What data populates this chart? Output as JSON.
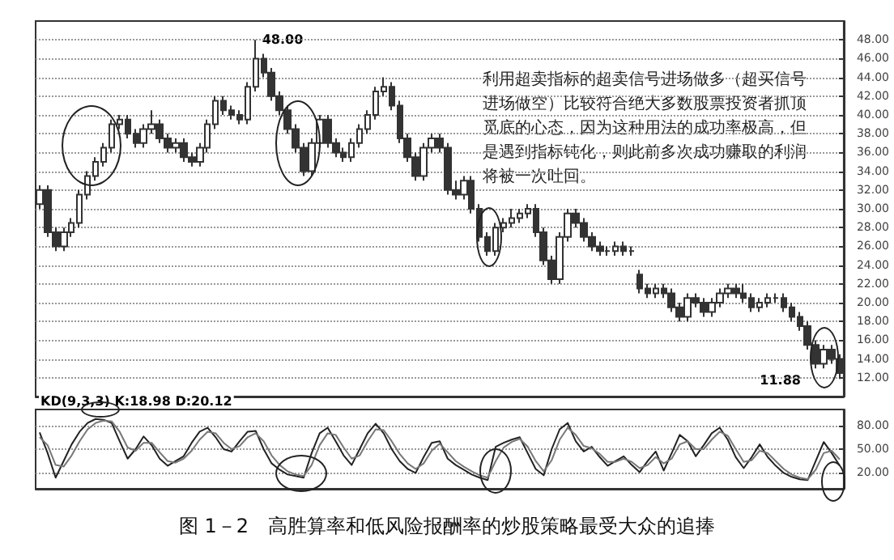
{
  "chart_data": [
    {
      "type": "candlestick",
      "title": "图 1－2　高胜算率和低风险报酬率的炒股策略最受大众的追捧",
      "annotations": [
        "48.00",
        "11.88",
        "利用超卖指标的超卖信号进场做多（超买信号进场做空）比较符合绝大多数股票投资者抓顶觅底的心态，因为这种用法的成功率极高，但是遇到指标钝化，则此前多次成功赚取的利润将被一次吐回。"
      ],
      "categories": [
        null,
        null,
        null,
        null,
        null,
        null,
        null,
        null,
        null,
        null,
        null,
        null,
        null,
        null,
        null,
        null,
        null,
        null,
        null,
        null,
        null,
        null,
        null,
        null,
        null,
        null,
        null,
        null,
        null,
        null,
        null,
        null,
        null,
        null,
        null,
        null,
        null,
        null,
        null,
        null,
        null,
        null,
        null,
        null,
        null,
        null,
        null,
        null,
        null,
        null,
        null,
        null,
        null,
        null,
        null,
        null,
        null,
        null,
        null,
        null,
        null,
        null,
        null,
        null,
        null,
        null,
        null,
        null,
        null,
        null,
        null,
        null,
        null,
        null,
        null,
        null,
        null,
        null,
        null,
        null,
        null,
        null,
        null,
        null,
        null,
        null,
        null,
        null,
        null,
        null,
        null,
        null,
        null,
        null,
        null,
        null,
        null,
        null,
        null,
        null,
        null
      ],
      "color": "#333333",
      "ohlc": [
        [
          30.5,
          32.5,
          30,
          32
        ],
        [
          32,
          32.5,
          27,
          27.5
        ],
        [
          27.5,
          28,
          25.5,
          26
        ],
        [
          26,
          28,
          25.5,
          27.5
        ],
        [
          27.5,
          29,
          27,
          28.5
        ],
        [
          28.5,
          32,
          28,
          31.5
        ],
        [
          31.5,
          34,
          31,
          33.5
        ],
        [
          33.5,
          35.5,
          33,
          35
        ],
        [
          35,
          37,
          34.5,
          36.5
        ],
        [
          36.5,
          39.5,
          36,
          39
        ],
        [
          39,
          40,
          38.5,
          39.5
        ],
        [
          39.5,
          40,
          37.5,
          38
        ],
        [
          38,
          38.5,
          36.5,
          37
        ],
        [
          37,
          39,
          36.5,
          38.5
        ],
        [
          38.5,
          40.5,
          38,
          39
        ],
        [
          39,
          39.5,
          37,
          37.5
        ],
        [
          37.5,
          38,
          36,
          36.5
        ],
        [
          36.5,
          37.5,
          36,
          37
        ],
        [
          37,
          37.5,
          35,
          35.5
        ],
        [
          35.5,
          36,
          34.5,
          35
        ],
        [
          35,
          37,
          34.5,
          36.5
        ],
        [
          36.5,
          39.5,
          36,
          39
        ],
        [
          39,
          42,
          38.5,
          41.5
        ],
        [
          41.5,
          42,
          40,
          40.5
        ],
        [
          40.5,
          41,
          39.5,
          40
        ],
        [
          40,
          40.5,
          39,
          39.5
        ],
        [
          39.5,
          43.5,
          39,
          43
        ],
        [
          43,
          48,
          42.5,
          46
        ],
        [
          46,
          46.5,
          44,
          44.5
        ],
        [
          44.5,
          45,
          41.5,
          42
        ],
        [
          42,
          42.5,
          40,
          40.5
        ],
        [
          40.5,
          41,
          38,
          38.5
        ],
        [
          38.5,
          39,
          36,
          36.5
        ],
        [
          36.5,
          37,
          33.5,
          34
        ],
        [
          34,
          37.5,
          33.5,
          37
        ],
        [
          37,
          40,
          36.5,
          39.5
        ],
        [
          39.5,
          40,
          36.5,
          37
        ],
        [
          37,
          37.5,
          35.5,
          36
        ],
        [
          36,
          36.5,
          35,
          35.5
        ],
        [
          35.5,
          37.5,
          35,
          37
        ],
        [
          37,
          39,
          36.5,
          38.5
        ],
        [
          38.5,
          40.5,
          38,
          40
        ],
        [
          40,
          43,
          39.5,
          42.5
        ],
        [
          42.5,
          44,
          42,
          43
        ],
        [
          43,
          43.5,
          40.5,
          41
        ],
        [
          41,
          41.5,
          37,
          37.5
        ],
        [
          37.5,
          38,
          35,
          35.5
        ],
        [
          35.5,
          36,
          33,
          33.5
        ],
        [
          33.5,
          37,
          33,
          36.5
        ],
        [
          36.5,
          38,
          36,
          37.5
        ],
        [
          37.5,
          38,
          36,
          36.5
        ],
        [
          36.5,
          37,
          31.5,
          32
        ],
        [
          32,
          33,
          31,
          31.5
        ],
        [
          31.5,
          33.5,
          31,
          33
        ],
        [
          33,
          33.5,
          29.5,
          30
        ],
        [
          30,
          30.5,
          26.5,
          27
        ],
        [
          27,
          27.5,
          25,
          25.5
        ],
        [
          25.5,
          28.5,
          25,
          28
        ],
        [
          28,
          29,
          27.5,
          28.5
        ],
        [
          28.5,
          30,
          28,
          29
        ],
        [
          29,
          30,
          28.5,
          29.5
        ],
        [
          29.5,
          30.5,
          29,
          30
        ],
        [
          30,
          30.5,
          27,
          27.5
        ],
        [
          27.5,
          28,
          24,
          24.5
        ],
        [
          24.5,
          25,
          22,
          22.5
        ],
        [
          22.5,
          27.5,
          22,
          27
        ],
        [
          27,
          30,
          26.5,
          29.5
        ],
        [
          29.5,
          30,
          28,
          28.5
        ],
        [
          28.5,
          29,
          26.5,
          27
        ],
        [
          27,
          27.5,
          25.5,
          26
        ],
        [
          26,
          26.5,
          25,
          25.5
        ],
        [
          25.5,
          26,
          25,
          25.5
        ],
        [
          25.5,
          26.5,
          25,
          26
        ],
        [
          26,
          26.5,
          25,
          25.5
        ],
        [
          25.5,
          26,
          25,
          25.5
        ],
        [
          23,
          23.5,
          21,
          21.5
        ],
        [
          21.5,
          22,
          20.5,
          21
        ],
        [
          21,
          22,
          20.5,
          21.5
        ],
        [
          21.5,
          22,
          20.5,
          21
        ],
        [
          21,
          21.5,
          19,
          19.5
        ],
        [
          19.5,
          20,
          18,
          18.5
        ],
        [
          18.5,
          21,
          18,
          20.5
        ],
        [
          20.5,
          21,
          19.5,
          20
        ],
        [
          20,
          20.5,
          18.5,
          19
        ],
        [
          19,
          20.5,
          18.5,
          20
        ],
        [
          20,
          21.5,
          19.5,
          21
        ],
        [
          21,
          22,
          20.5,
          21.5
        ],
        [
          21.5,
          22,
          20.5,
          21
        ],
        [
          21,
          22,
          20,
          20.5
        ],
        [
          20.5,
          21,
          19,
          19.5
        ],
        [
          19.5,
          20.5,
          19,
          20
        ],
        [
          20,
          21,
          19.5,
          20.5
        ],
        [
          20.5,
          21,
          20,
          20.5
        ],
        [
          20.5,
          21,
          19,
          19.5
        ],
        [
          19.5,
          20,
          18,
          18.5
        ],
        [
          18.5,
          19,
          17,
          17.5
        ],
        [
          17.5,
          18,
          15,
          15.5
        ],
        [
          15.5,
          16,
          13,
          13.5
        ],
        [
          13.5,
          15.5,
          13,
          15
        ],
        [
          15,
          15.5,
          13.5,
          14
        ],
        [
          14,
          14.5,
          11.88,
          12.5
        ]
      ],
      "ylim": [
        10,
        50
      ],
      "yticks": [
        {
          "value": 12,
          "label": "12.00"
        },
        {
          "value": 14,
          "label": "14.00"
        },
        {
          "value": 16,
          "label": "16.00"
        },
        {
          "value": 18,
          "label": "18.00"
        },
        {
          "value": 20,
          "label": "20.00"
        },
        {
          "value": 22,
          "label": "22.00"
        },
        {
          "value": 24,
          "label": "24.00"
        },
        {
          "value": 26,
          "label": "26.00"
        },
        {
          "value": 28,
          "label": "28.00"
        },
        {
          "value": 30,
          "label": "30.00"
        },
        {
          "value": 32,
          "label": "32.00"
        },
        {
          "value": 34,
          "label": "34.00"
        },
        {
          "value": 36,
          "label": "36.00"
        },
        {
          "value": 38,
          "label": "38.00"
        },
        {
          "value": 40,
          "label": "40.00"
        },
        {
          "value": 42,
          "label": "42.00"
        },
        {
          "value": 44,
          "label": "44.00"
        },
        {
          "value": 46,
          "label": "46.00"
        },
        {
          "value": 48,
          "label": "48.00"
        }
      ],
      "grid": "y",
      "tick_labels": "y"
    },
    {
      "type": "line",
      "title": "KD(9,3,3) K:18.98 D:20.12",
      "categories": [
        null,
        null,
        null,
        null,
        null,
        null,
        null,
        null,
        null,
        null,
        null,
        null,
        null,
        null,
        null,
        null,
        null,
        null,
        null,
        null,
        null,
        null,
        null,
        null,
        null,
        null,
        null,
        null,
        null,
        null,
        null,
        null,
        null,
        null,
        null,
        null,
        null,
        null,
        null,
        null,
        null,
        null,
        null,
        null,
        null,
        null,
        null,
        null,
        null,
        null,
        null,
        null,
        null,
        null,
        null,
        null,
        null,
        null,
        null,
        null,
        null,
        null,
        null,
        null,
        null,
        null,
        null,
        null,
        null,
        null,
        null,
        null,
        null,
        null,
        null,
        null,
        null,
        null,
        null,
        null,
        null,
        null,
        null,
        null,
        null,
        null,
        null,
        null,
        null,
        null,
        null,
        null,
        null,
        null,
        null,
        null,
        null,
        null,
        null,
        null,
        null
      ],
      "series": [
        {
          "color": "#222222",
          "values": [
            71,
            45,
            14,
            35,
            56,
            72,
            83,
            88,
            87,
            83,
            60,
            38,
            50,
            66,
            55,
            38,
            29,
            35,
            41,
            58,
            72,
            77,
            65,
            50,
            47,
            60,
            72,
            73,
            50,
            32,
            24,
            18,
            16,
            14,
            45,
            70,
            77,
            60,
            42,
            30,
            50,
            70,
            82,
            70,
            50,
            35,
            25,
            20,
            40,
            58,
            60,
            38,
            30,
            24,
            18,
            14,
            11,
            53,
            58,
            62,
            65,
            45,
            25,
            17,
            50,
            75,
            83,
            60,
            47,
            53,
            40,
            29,
            35,
            41,
            30,
            21,
            35,
            47,
            23,
            45,
            68,
            60,
            41,
            55,
            70,
            77,
            62,
            40,
            26,
            40,
            56,
            40,
            29,
            20,
            15,
            12,
            11,
            35,
            59,
            45,
            29
          ]
        },
        {
          "color": "#777777",
          "values": [
            65,
            55,
            30,
            28,
            42,
            60,
            75,
            83,
            86,
            85,
            72,
            52,
            48,
            58,
            58,
            46,
            35,
            33,
            38,
            48,
            62,
            72,
            70,
            58,
            50,
            54,
            65,
            70,
            60,
            42,
            30,
            22,
            18,
            16,
            30,
            55,
            70,
            68,
            52,
            38,
            42,
            60,
            75,
            74,
            60,
            44,
            32,
            25,
            32,
            48,
            57,
            46,
            35,
            28,
            22,
            17,
            14,
            35,
            52,
            59,
            63,
            53,
            35,
            22,
            36,
            62,
            77,
            68,
            54,
            51,
            44,
            34,
            34,
            38,
            34,
            26,
            30,
            40,
            32,
            38,
            56,
            60,
            50,
            50,
            62,
            72,
            67,
            50,
            34,
            36,
            48,
            45,
            35,
            25,
            18,
            14,
            12,
            24,
            45,
            48,
            37
          ]
        }
      ],
      "ylim": [
        0,
        100
      ],
      "yticks": [
        {
          "value": 20,
          "label": "20.00"
        },
        {
          "value": 50,
          "label": "50.00"
        },
        {
          "value": 80,
          "label": "80.00"
        }
      ],
      "grid": "y",
      "tick_labels": "y"
    }
  ]
}
